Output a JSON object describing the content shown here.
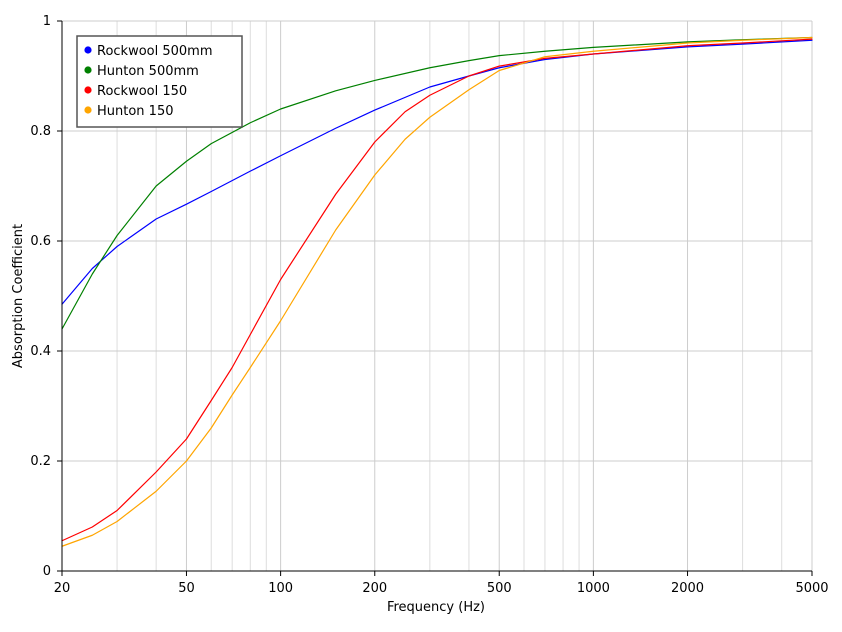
{
  "chart_data": {
    "type": "line",
    "title": "",
    "xlabel": "Frequency (Hz)",
    "ylabel": "Absorption Coefficient",
    "xscale": "log",
    "xlim": [
      20,
      5000
    ],
    "ylim": [
      0,
      1
    ],
    "grid": true,
    "legend_position": "top-left",
    "x_ticks": [
      {
        "value": 20,
        "label": "20"
      },
      {
        "value": 50,
        "label": "50"
      },
      {
        "value": 100,
        "label": "100"
      },
      {
        "value": 200,
        "label": "200"
      },
      {
        "value": 500,
        "label": "500"
      },
      {
        "value": 1000,
        "label": "1000"
      },
      {
        "value": 2000,
        "label": "2000"
      },
      {
        "value": 5000,
        "label": "5000"
      }
    ],
    "y_ticks": [
      {
        "value": 0,
        "label": "0"
      },
      {
        "value": 0.2,
        "label": "0.2"
      },
      {
        "value": 0.4,
        "label": "0.4"
      },
      {
        "value": 0.6,
        "label": "0.6"
      },
      {
        "value": 0.8,
        "label": "0.8"
      },
      {
        "value": 1,
        "label": "1"
      }
    ],
    "x_minor_grid": [
      30,
      40,
      60,
      70,
      80,
      90,
      300,
      400,
      600,
      700,
      800,
      900,
      3000,
      4000
    ],
    "series": [
      {
        "name": "Rockwool 500mm",
        "color": "#0000ff",
        "x": [
          20,
          25,
          30,
          40,
          50,
          60,
          80,
          100,
          150,
          200,
          300,
          400,
          500,
          700,
          1000,
          2000,
          3000,
          5000
        ],
        "y": [
          0.485,
          0.55,
          0.59,
          0.64,
          0.667,
          0.69,
          0.727,
          0.755,
          0.805,
          0.838,
          0.88,
          0.9,
          0.915,
          0.93,
          0.94,
          0.953,
          0.958,
          0.965
        ]
      },
      {
        "name": "Hunton 500mm",
        "color": "#008000",
        "x": [
          20,
          25,
          30,
          40,
          50,
          60,
          80,
          100,
          150,
          200,
          300,
          400,
          500,
          700,
          1000,
          2000,
          3000,
          5000
        ],
        "y": [
          0.44,
          0.54,
          0.61,
          0.7,
          0.745,
          0.777,
          0.815,
          0.84,
          0.873,
          0.892,
          0.915,
          0.928,
          0.937,
          0.945,
          0.952,
          0.962,
          0.966,
          0.97
        ]
      },
      {
        "name": "Rockwool 150",
        "color": "#ff0000",
        "x": [
          20,
          25,
          30,
          40,
          50,
          60,
          70,
          80,
          100,
          150,
          200,
          250,
          300,
          400,
          500,
          700,
          1000,
          2000,
          3000,
          5000
        ],
        "y": [
          0.055,
          0.08,
          0.11,
          0.18,
          0.24,
          0.31,
          0.37,
          0.43,
          0.53,
          0.685,
          0.78,
          0.835,
          0.865,
          0.9,
          0.918,
          0.932,
          0.94,
          0.955,
          0.96,
          0.967
        ]
      },
      {
        "name": "Hunton 150",
        "color": "#ffa500",
        "x": [
          20,
          25,
          30,
          40,
          50,
          60,
          70,
          80,
          100,
          150,
          200,
          250,
          300,
          400,
          500,
          700,
          1000,
          2000,
          3000,
          5000
        ],
        "y": [
          0.045,
          0.065,
          0.09,
          0.145,
          0.2,
          0.26,
          0.32,
          0.37,
          0.455,
          0.62,
          0.72,
          0.785,
          0.825,
          0.875,
          0.91,
          0.935,
          0.945,
          0.96,
          0.965,
          0.97
        ]
      }
    ]
  }
}
